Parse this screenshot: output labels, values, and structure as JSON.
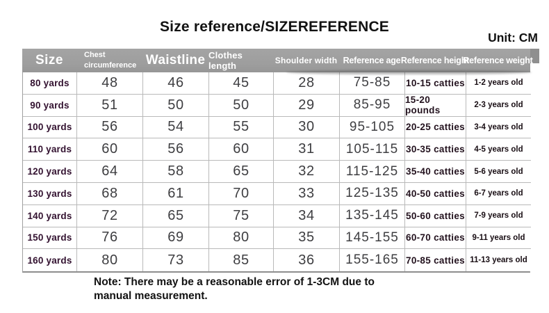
{
  "page": {
    "title": "Size reference/SIZEREFERENCE",
    "unit_label": "Unit: CM",
    "note": "Note: There may be a reasonable error of 1-3CM due to manual measurement."
  },
  "table": {
    "headers": [
      "Size",
      "Chest circumference",
      "Waistline",
      "Clothes length",
      "Shoulder width",
      "Reference age",
      "Reference height",
      "Reference weight"
    ],
    "rows": [
      [
        "80 yards",
        "48",
        "46",
        "45",
        "28",
        "75-85",
        "10-15 catties",
        "1-2 years old"
      ],
      [
        "90 yards",
        "51",
        "50",
        "50",
        "29",
        "85-95",
        "15-20 pounds",
        "2-3 years old"
      ],
      [
        "100 yards",
        "56",
        "54",
        "55",
        "30",
        "95-105",
        "20-25 catties",
        "3-4 years old"
      ],
      [
        "110 yards",
        "60",
        "56",
        "60",
        "31",
        "105-115",
        "30-35 catties",
        "4-5 years old"
      ],
      [
        "120 yards",
        "64",
        "58",
        "65",
        "32",
        "115-125",
        "35-40 catties",
        "5-6 years old"
      ],
      [
        "130 yards",
        "68",
        "61",
        "70",
        "33",
        "125-135",
        "40-50 catties",
        "6-7 years old"
      ],
      [
        "140 yards",
        "72",
        "65",
        "75",
        "34",
        "135-145",
        "50-60 catties",
        "7-9 years old"
      ],
      [
        "150 yards",
        "76",
        "69",
        "80",
        "35",
        "145-155",
        "60-70 catties",
        "9-11 years old"
      ],
      [
        "160 yards",
        "80",
        "73",
        "85",
        "36",
        "155-165",
        "70-85 catties",
        "11-13 years old"
      ]
    ]
  },
  "colors": {
    "header_bg": "#9d9d9d",
    "header_text": "#ffffff",
    "grid_border": "#b9b9b9",
    "outer_border": "#a0a0a0",
    "size_label_text": "#331230",
    "number_text": "#3e3e41",
    "weight_text": "#23121e",
    "age_text": "#190e14",
    "heading_text": "#121212"
  }
}
